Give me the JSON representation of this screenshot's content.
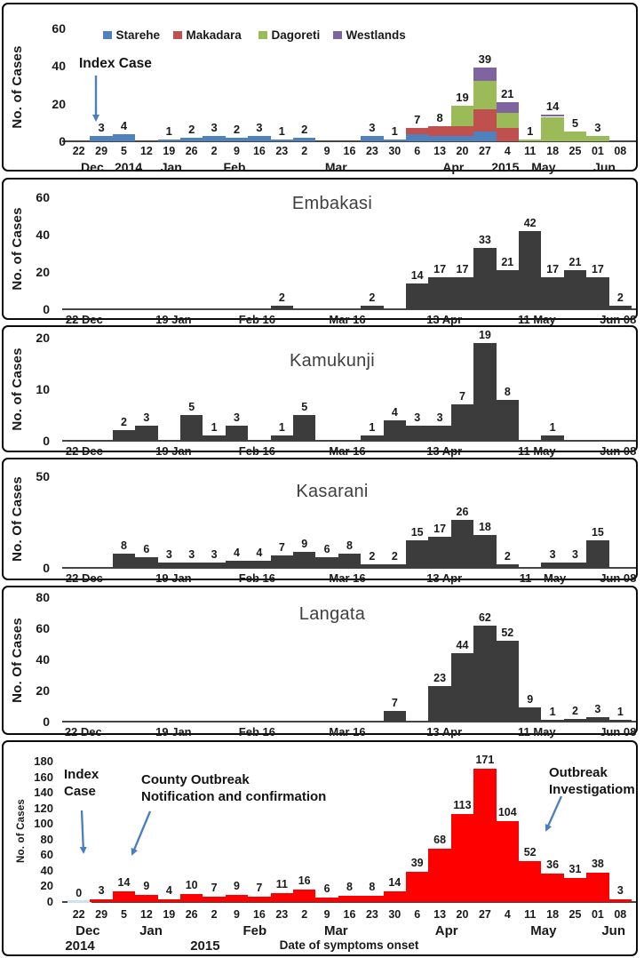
{
  "week_labels": [
    "22",
    "29",
    "5",
    "12",
    "19",
    "26",
    "2",
    "9",
    "16",
    "23",
    "2",
    "9",
    "16",
    "23",
    "30",
    "6",
    "13",
    "20",
    "27",
    "4",
    "11",
    "18",
    "25",
    "01",
    "08"
  ],
  "colors": {
    "starehe": "#4f81bd",
    "makadara": "#c0504d",
    "dagoreti": "#9bbb59",
    "westlands": "#8064a2",
    "gray_bar": "#3c3c3c",
    "red_bar": "#ff0000",
    "zero_bar": "#cfe0f0",
    "arrow": "#4a7ebc"
  },
  "chart_data": [
    {
      "id": "subcounties-overview",
      "type": "bar",
      "stacked": true,
      "title": "",
      "ylabel": "No. of Cases",
      "xlabel": "",
      "y_ticks": [
        0,
        20,
        40,
        60
      ],
      "ylim": [
        0,
        60
      ],
      "legend_position": "top",
      "annotation": "Index Case",
      "categories": [
        "22",
        "29",
        "5",
        "12",
        "19",
        "26",
        "2",
        "9",
        "16",
        "23",
        "2",
        "9",
        "16",
        "23",
        "30",
        "6",
        "13",
        "20",
        "27",
        "4",
        "11",
        "18",
        "25",
        "01",
        "08"
      ],
      "months": [
        [
          "Dec",
          0.6
        ],
        [
          "2014",
          2.2
        ],
        [
          "Jan",
          4.1
        ],
        [
          "Feb",
          6.9
        ],
        [
          "Mar",
          11.4
        ],
        [
          "Apr",
          16.6
        ],
        [
          "2015",
          18.9
        ],
        [
          "May",
          20.6
        ],
        [
          "Jun",
          23.3
        ]
      ],
      "series": [
        {
          "name": "Starehe",
          "color": "#4f81bd",
          "values": [
            0,
            3,
            4,
            0,
            1,
            2,
            3,
            2,
            3,
            1,
            2,
            0,
            0,
            3,
            1,
            4,
            3,
            3,
            5,
            0,
            0,
            0,
            0,
            0,
            0
          ]
        },
        {
          "name": "Makadara",
          "color": "#c0504d",
          "values": [
            0,
            0,
            0,
            0,
            0,
            0,
            0,
            0,
            0,
            0,
            0,
            0,
            0,
            0,
            0,
            3,
            5,
            5,
            12,
            7,
            0,
            0,
            0,
            0,
            0
          ]
        },
        {
          "name": "Dagoreti",
          "color": "#9bbb59",
          "values": [
            0,
            0,
            0,
            0,
            0,
            0,
            0,
            0,
            0,
            0,
            0,
            0,
            0,
            0,
            0,
            0,
            0,
            11,
            15,
            8,
            1,
            13,
            5,
            3,
            0
          ]
        },
        {
          "name": "Westlands",
          "color": "#8064a2",
          "values": [
            0,
            0,
            0,
            0,
            0,
            0,
            0,
            0,
            0,
            0,
            0,
            0,
            0,
            0,
            0,
            0,
            0,
            0,
            7,
            6,
            0,
            1,
            0,
            0,
            0
          ]
        }
      ],
      "totals": [
        0,
        3,
        4,
        0,
        1,
        2,
        3,
        2,
        3,
        1,
        2,
        0,
        0,
        3,
        1,
        7,
        8,
        19,
        39,
        21,
        1,
        14,
        5,
        3,
        0
      ]
    },
    {
      "id": "embakasi",
      "type": "bar",
      "title": "Embakasi",
      "ylabel": "No. of Cases",
      "y_ticks": [
        0,
        20,
        40,
        60
      ],
      "ylim": [
        0,
        60
      ],
      "bar_color": "#3c3c3c",
      "values": [
        0,
        0,
        0,
        0,
        0,
        0,
        0,
        0,
        0,
        2,
        0,
        0,
        0,
        2,
        0,
        14,
        17,
        17,
        33,
        21,
        42,
        17,
        21,
        17,
        2
      ],
      "x_ticks": [
        [
          "22",
          -0.3
        ],
        [
          "Dec",
          0.6
        ],
        [
          "19 Jan",
          4.2
        ],
        [
          "Feb 16",
          7.9
        ],
        [
          "Mar 16",
          11.9
        ],
        [
          "13 Apr",
          16.2
        ],
        [
          "11 May",
          20.3
        ],
        [
          "Jun 08",
          23.9
        ]
      ]
    },
    {
      "id": "kamukunji",
      "type": "bar",
      "title": "Kamukunji",
      "ylabel": "No. of Cases",
      "y_ticks": [
        0,
        10,
        20
      ],
      "ylim": [
        0,
        20
      ],
      "bar_color": "#3c3c3c",
      "values": [
        0,
        0,
        2,
        3,
        0,
        5,
        1,
        3,
        0,
        1,
        5,
        0,
        0,
        1,
        4,
        3,
        3,
        7,
        19,
        8,
        0,
        1,
        0,
        0,
        0
      ],
      "x_ticks": [
        [
          "22",
          -0.3
        ],
        [
          "Dec",
          0.6
        ],
        [
          "19 Jan",
          4.2
        ],
        [
          "Feb 16",
          7.9
        ],
        [
          "Mar 16",
          11.9
        ],
        [
          "13 Apr",
          16.2
        ],
        [
          "11 May",
          20.3
        ],
        [
          "Jun 08",
          23.9
        ]
      ]
    },
    {
      "id": "kasarani",
      "type": "bar",
      "title": "Kasarani",
      "ylabel": "No. Of Cases",
      "y_ticks": [
        0,
        50
      ],
      "ylim": [
        0,
        50
      ],
      "bar_color": "#3c3c3c",
      "values": [
        0,
        0,
        8,
        6,
        3,
        3,
        3,
        4,
        4,
        7,
        9,
        6,
        8,
        2,
        2,
        15,
        17,
        26,
        18,
        2,
        0,
        3,
        3,
        15,
        0
      ],
      "x_ticks": [
        [
          "22",
          -0.3
        ],
        [
          "Dec",
          0.6
        ],
        [
          "19 Jan",
          4.2
        ],
        [
          "Feb 16",
          7.9
        ],
        [
          "Mar 16",
          11.9
        ],
        [
          "13 Apr",
          16.2
        ],
        [
          "11",
          19.8
        ],
        [
          "May",
          21.1
        ],
        [
          "Jun 08",
          23.9
        ]
      ]
    },
    {
      "id": "langata",
      "type": "bar",
      "title": "Langata",
      "ylabel": "No. Of Cases",
      "y_ticks": [
        0,
        20,
        40,
        60,
        80
      ],
      "ylim": [
        0,
        80
      ],
      "bar_color": "#3c3c3c",
      "values": [
        0,
        0,
        0,
        0,
        0,
        0,
        0,
        0,
        0,
        0,
        0,
        0,
        0,
        0,
        7,
        0,
        23,
        44,
        62,
        52,
        9,
        1,
        2,
        3,
        1
      ],
      "x_ticks": [
        [
          "22 Dec",
          0.2
        ],
        [
          "19 Jan",
          4.2
        ],
        [
          "Feb 16",
          7.9
        ],
        [
          "Mar 16",
          11.9
        ],
        [
          "13 Apr",
          16.2
        ],
        [
          "11 May",
          20.3
        ],
        [
          "Jun 08",
          23.9
        ]
      ]
    },
    {
      "id": "nairobi-total",
      "type": "bar",
      "title": "",
      "ylabel": "No. of Cases",
      "xlabel": "Date of symptoms onset",
      "y_ticks": [
        0,
        20,
        40,
        60,
        80,
        100,
        120,
        140,
        160,
        180
      ],
      "ylim": [
        0,
        180
      ],
      "bar_color": "#ff0000",
      "zero_bar_color": "#cfe0f0",
      "categories": [
        "22",
        "29",
        "5",
        "12",
        "19",
        "26",
        "2",
        "9",
        "16",
        "23",
        "2",
        "9",
        "16",
        "23",
        "30",
        "6",
        "13",
        "20",
        "27",
        "4",
        "11",
        "18",
        "25",
        "01",
        "08"
      ],
      "months": [
        [
          "Dec",
          0.4
        ],
        [
          "Jan",
          3.2
        ],
        [
          "Feb",
          7.8
        ],
        [
          "Mar",
          11.4
        ],
        [
          "Apr",
          16.3
        ],
        [
          "May",
          20.6
        ],
        [
          "Jun",
          23.7
        ]
      ],
      "years": [
        [
          "2014",
          0.05
        ],
        [
          "2015",
          5.6
        ]
      ],
      "values": [
        0,
        3,
        14,
        9,
        4,
        10,
        7,
        9,
        7,
        11,
        16,
        6,
        8,
        8,
        14,
        39,
        68,
        113,
        171,
        104,
        52,
        36,
        31,
        38,
        3
      ],
      "label_all": true,
      "annotations": {
        "index": "Index\nCase",
        "county": "County Outbreak\nNotification and confirmation",
        "outbreak": "Outbreak\nInvestigatiom"
      }
    }
  ]
}
